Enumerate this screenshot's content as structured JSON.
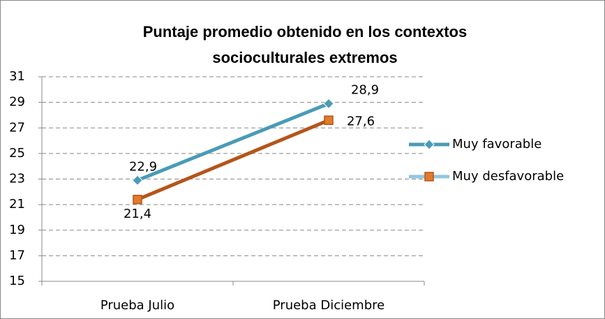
{
  "chart_data": {
    "type": "line",
    "title": [
      "Puntaje promedio obtenido en los contextos",
      "socioculturales extremos"
    ],
    "categories": [
      "Prueba Julio",
      "Prueba Diciembre"
    ],
    "series": [
      {
        "name": "Muy favorable",
        "color": "#4a9bb5",
        "marker": "diamond",
        "values": [
          22.9,
          28.9
        ],
        "value_labels": [
          "22,9",
          "28,9"
        ]
      },
      {
        "name": "Muy desfavorable",
        "color": "#b5541a",
        "marker": "square",
        "values": [
          21.4,
          27.6
        ],
        "value_labels": [
          "21,4",
          "27,6"
        ]
      }
    ],
    "ylim": [
      15,
      31
    ],
    "yticks": [
      15,
      17,
      19,
      21,
      23,
      25,
      27,
      29,
      31
    ],
    "grid": true,
    "legend": "right"
  }
}
